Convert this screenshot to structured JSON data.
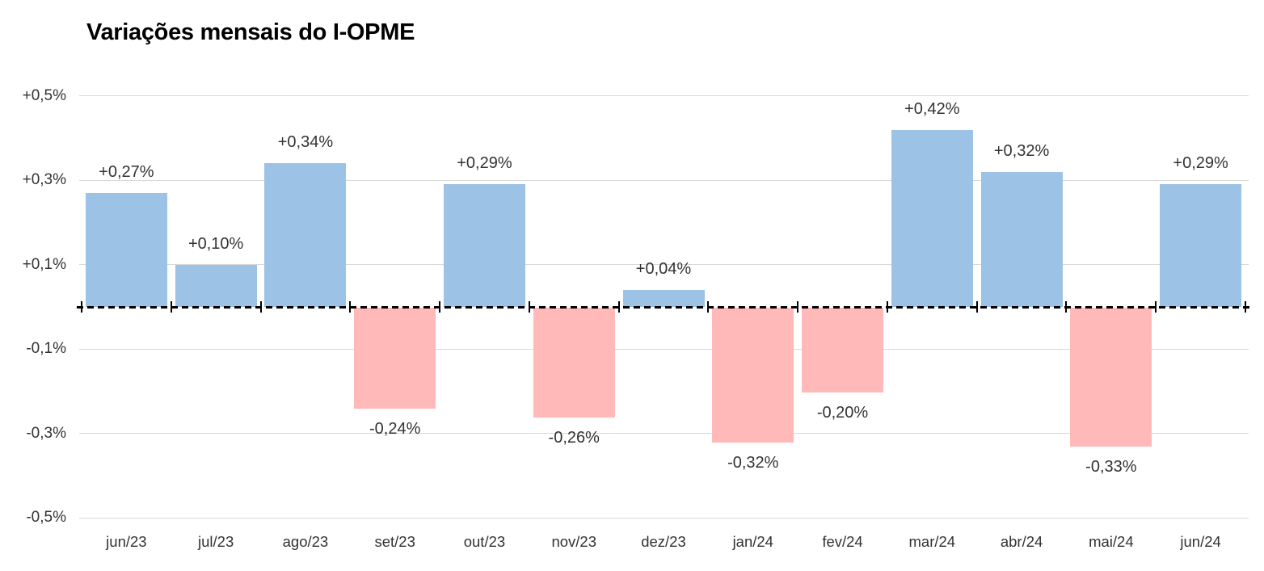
{
  "chart_data": {
    "type": "bar",
    "title": "Variações mensais do I-OPME",
    "categories": [
      "jun/23",
      "jul/23",
      "ago/23",
      "set/23",
      "out/23",
      "nov/23",
      "dez/23",
      "jan/24",
      "fev/24",
      "mar/24",
      "abr/24",
      "mai/24",
      "jun/24"
    ],
    "values": [
      0.27,
      0.1,
      0.34,
      -0.24,
      0.29,
      -0.26,
      0.04,
      -0.32,
      -0.2,
      0.42,
      0.32,
      -0.33,
      0.29
    ],
    "value_labels": [
      "+0,27%",
      "+0,10%",
      "+0,34%",
      "-0,24%",
      "+0,29%",
      "-0,26%",
      "+0,04%",
      "-0,32%",
      "-0,20%",
      "+0,42%",
      "+0,32%",
      "-0,33%",
      "+0,29%"
    ],
    "yticks": [
      {
        "v": 0.5,
        "label": "+0,5%"
      },
      {
        "v": 0.3,
        "label": "+0,3%"
      },
      {
        "v": 0.1,
        "label": "+0,1%"
      },
      {
        "v": -0.1,
        "label": "-0,1%"
      },
      {
        "v": -0.3,
        "label": "-0,3%"
      },
      {
        "v": -0.5,
        "label": "-0,5%"
      }
    ],
    "ylim": [
      -0.5,
      0.5
    ],
    "xlabel": "",
    "ylabel": "",
    "grid": true,
    "legend": false,
    "colors": {
      "positive_bar": "#9CC2E5",
      "negative_bar": "#FFB9B9",
      "gridline": "#D9D9D9",
      "zero_axis": "#000000",
      "tick": "#000000",
      "text": "#333333",
      "title_text": "#000000",
      "background": "#FFFFFF"
    }
  }
}
